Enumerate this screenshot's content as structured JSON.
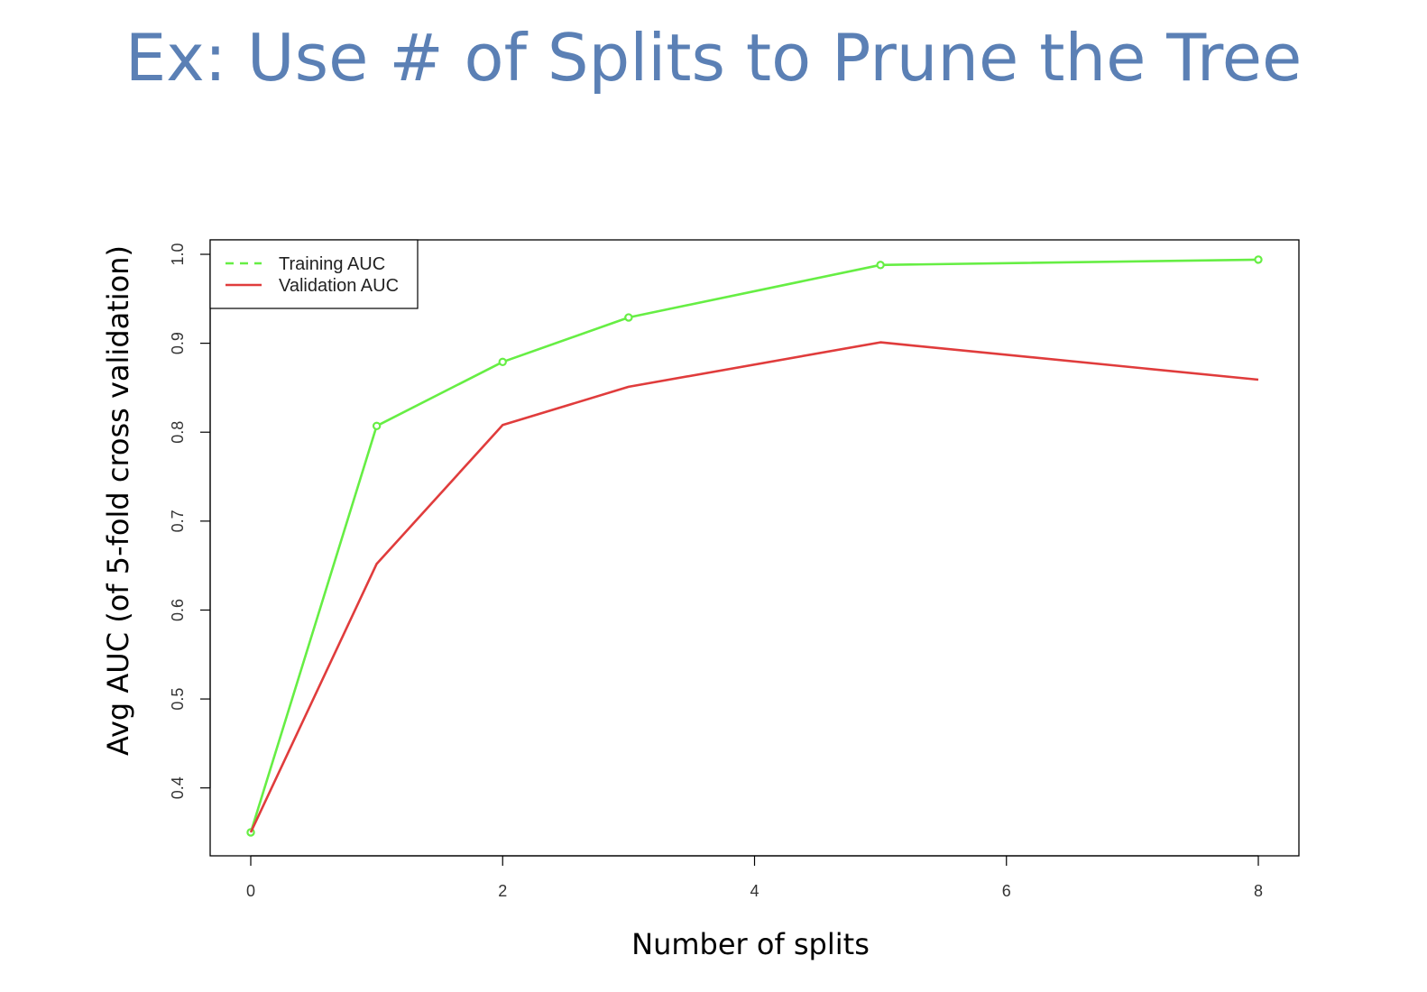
{
  "slide": {
    "title": "Ex: Use # of Splits to Prune the Tree"
  },
  "chart_data": {
    "type": "line",
    "xlabel": "Number of splits",
    "ylabel": "Avg AUC (of 5-fold cross validation)",
    "xlim": [
      0,
      8
    ],
    "ylim": [
      0.35,
      1.0
    ],
    "xticks": [
      "0",
      "2",
      "4",
      "6",
      "8"
    ],
    "yticks": [
      "0.4",
      "0.5",
      "0.6",
      "0.7",
      "0.8",
      "0.9",
      "1.0"
    ],
    "legend_position": "top-left",
    "grid": false,
    "series": [
      {
        "name": "Training AUC",
        "color": "#66ee44",
        "style": "dashed-with-points",
        "x": [
          0,
          1,
          2,
          3,
          5,
          8
        ],
        "values": [
          0.35,
          0.807,
          0.879,
          0.929,
          0.988,
          0.994
        ]
      },
      {
        "name": "Validation AUC",
        "color": "#e03c3c",
        "style": "solid",
        "x": [
          0,
          1,
          2,
          3,
          5,
          8
        ],
        "values": [
          0.35,
          0.652,
          0.808,
          0.851,
          0.901,
          0.859
        ]
      }
    ]
  }
}
